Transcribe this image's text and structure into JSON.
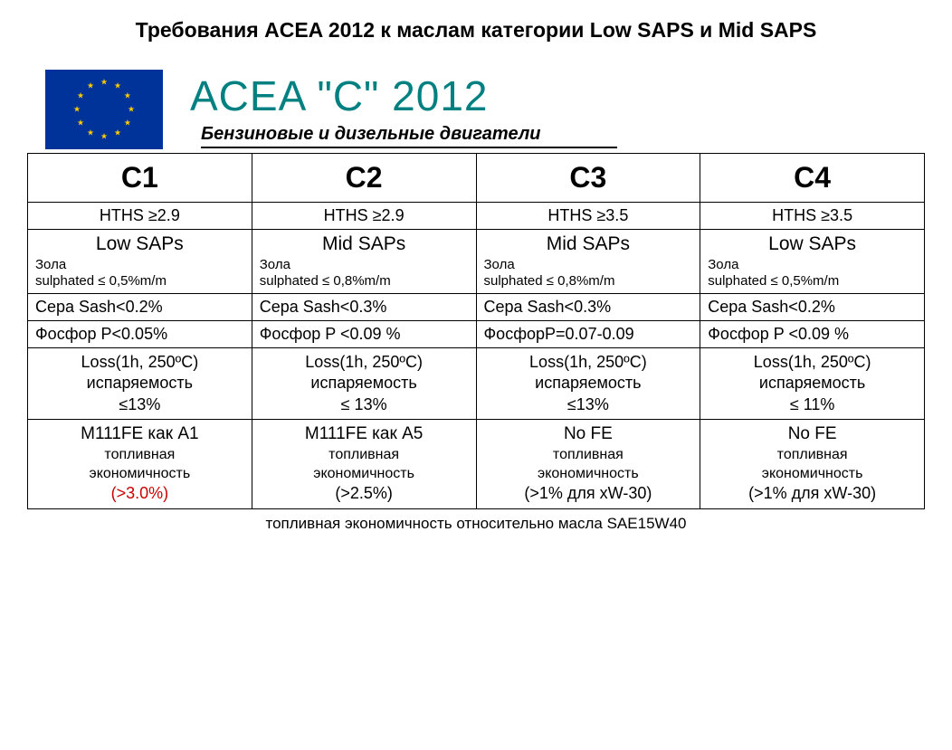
{
  "page_title": "Требования ACEA 2012 к маслам категории Low SAPS и Mid SAPS",
  "acea_title": "ACEA \"C\"  2012",
  "subtitle": "Бензиновые и дизельные двигатели",
  "columns": [
    "C1",
    "C2",
    "C3",
    "C4"
  ],
  "rows": {
    "hths": [
      "HTHS ≥2.9",
      "HTHS ≥2.9",
      "HTHS ≥3.5",
      "HTHS ≥3.5"
    ],
    "saps": [
      {
        "main": "Low SAPs",
        "sub1": "Зола",
        "sub2": "sulphated ≤ 0,5%m/m"
      },
      {
        "main": "Mid SAPs",
        "sub1": "Зола",
        "sub2": "sulphated ≤ 0,8%m/m"
      },
      {
        "main": "Mid SAPs",
        "sub1": "Зола",
        "sub2": "sulphated ≤ 0,8%m/m"
      },
      {
        "main": "Low SAPs",
        "sub1": "Зола",
        "sub2": "sulphated ≤ 0,5%m/m"
      }
    ],
    "sash": [
      "Сера Sash<0.2%",
      "Сера Sash<0.3%",
      "Сера Sash<0.3%",
      "Сера Sash<0.2%"
    ],
    "phosphor": [
      "Фосфор P<0.05%",
      "Фосфор P <0.09 %",
      "ФосфорP=0.07-0.09",
      "Фосфор P <0.09 %"
    ],
    "loss": [
      {
        "l1": "Loss(1h, 250ºC)",
        "l2": "испаряемость",
        "l3": "≤13%"
      },
      {
        "l1": "Loss(1h, 250ºC)",
        "l2": "испаряемость",
        "l3": "≤ 13%"
      },
      {
        "l1": "Loss(1h, 250ºC)",
        "l2": "испаряемость",
        "l3": "≤13%"
      },
      {
        "l1": "Loss(1h, 250ºC)",
        "l2": "испаряемость",
        "l3": "≤ 11%"
      }
    ],
    "fe": [
      {
        "main": "M111FE как A1",
        "sub": "топливная\nэкономичность",
        "pct": "(>3.0%)",
        "red": true
      },
      {
        "main": "M111FE как A5",
        "sub": "топливная\nэкономичность",
        "pct": "(>2.5%)",
        "red": false
      },
      {
        "main": "No FE",
        "sub": "топливная\nэкономичность",
        "pct": "(>1% для xW-30)",
        "red": false
      },
      {
        "main": "No FE",
        "sub": "топливная\nэкономичность",
        "pct": "(>1% для xW-30)",
        "red": false
      }
    ]
  },
  "footer": "топливная экономичность относительно масла SAE15W40",
  "colors": {
    "teal": "#008080",
    "red": "#cc0000",
    "flag_bg": "#003399",
    "flag_star": "#ffcc00"
  }
}
